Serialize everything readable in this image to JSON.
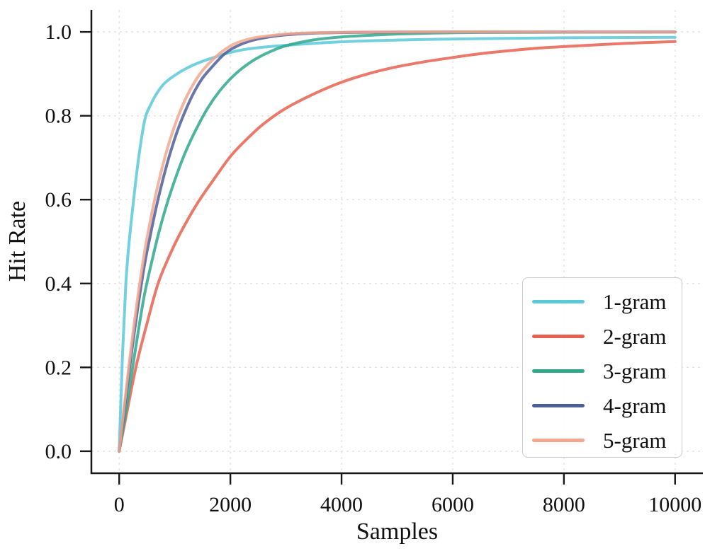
{
  "figure": {
    "background": "#ffffff",
    "text_color": "#111111",
    "grid_color": "#e2e2e2",
    "spine_color": "#181818"
  },
  "chart_data": {
    "type": "line",
    "title": "",
    "xlabel": "Samples",
    "ylabel": "Hit Rate",
    "xlim": [
      -500,
      10500
    ],
    "ylim": [
      -0.0525,
      1.0525
    ],
    "grid": true,
    "grid_style": "dashed",
    "legend_position": "lower right",
    "xticks": [
      0,
      2000,
      4000,
      6000,
      8000,
      10000
    ],
    "xtick_labels": [
      "0",
      "2000",
      "4000",
      "6000",
      "8000",
      "10000"
    ],
    "yticks": [
      0.0,
      0.2,
      0.4,
      0.6,
      0.8,
      1.0
    ],
    "ytick_labels": [
      "0.0",
      "0.2",
      "0.4",
      "0.6",
      "0.8",
      "1.0"
    ],
    "series": [
      {
        "name": "1-gram",
        "color": "#5bc8d9",
        "points": [
          [
            0,
            0
          ],
          [
            60,
            0.23
          ],
          [
            120,
            0.4
          ],
          [
            180,
            0.5
          ],
          [
            260,
            0.6
          ],
          [
            350,
            0.7
          ],
          [
            460,
            0.79
          ],
          [
            560,
            0.825
          ],
          [
            660,
            0.85
          ],
          [
            790,
            0.874
          ],
          [
            920,
            0.889
          ],
          [
            1100,
            0.905
          ],
          [
            1300,
            0.919
          ],
          [
            1500,
            0.93
          ],
          [
            1750,
            0.941
          ],
          [
            2000,
            0.951
          ],
          [
            2300,
            0.959
          ],
          [
            2700,
            0.965
          ],
          [
            3200,
            0.97
          ],
          [
            3800,
            0.975
          ],
          [
            4500,
            0.979
          ],
          [
            5500,
            0.982
          ],
          [
            6500,
            0.984
          ],
          [
            8000,
            0.986
          ],
          [
            10000,
            0.987
          ]
        ]
      },
      {
        "name": "2-gram",
        "color": "#e8614f",
        "points": [
          [
            0,
            0
          ],
          [
            120,
            0.08
          ],
          [
            300,
            0.2
          ],
          [
            500,
            0.305
          ],
          [
            700,
            0.4
          ],
          [
            900,
            0.465
          ],
          [
            1100,
            0.52
          ],
          [
            1400,
            0.59
          ],
          [
            1700,
            0.648
          ],
          [
            2000,
            0.703
          ],
          [
            2300,
            0.745
          ],
          [
            2600,
            0.781
          ],
          [
            3000,
            0.818
          ],
          [
            3500,
            0.852
          ],
          [
            4000,
            0.88
          ],
          [
            4500,
            0.901
          ],
          [
            5000,
            0.917
          ],
          [
            5500,
            0.929
          ],
          [
            6000,
            0.939
          ],
          [
            6500,
            0.948
          ],
          [
            7000,
            0.955
          ],
          [
            7500,
            0.961
          ],
          [
            8000,
            0.965
          ],
          [
            9000,
            0.972
          ],
          [
            10000,
            0.977
          ]
        ]
      },
      {
        "name": "3-gram",
        "color": "#2ea88c",
        "points": [
          [
            0,
            0
          ],
          [
            150,
            0.12
          ],
          [
            300,
            0.25
          ],
          [
            450,
            0.37
          ],
          [
            600,
            0.46
          ],
          [
            750,
            0.54
          ],
          [
            900,
            0.607
          ],
          [
            1050,
            0.665
          ],
          [
            1200,
            0.716
          ],
          [
            1400,
            0.772
          ],
          [
            1600,
            0.82
          ],
          [
            1800,
            0.858
          ],
          [
            2000,
            0.888
          ],
          [
            2200,
            0.912
          ],
          [
            2450,
            0.935
          ],
          [
            2700,
            0.952
          ],
          [
            3000,
            0.967
          ],
          [
            3500,
            0.981
          ],
          [
            4000,
            0.988
          ],
          [
            4500,
            0.992
          ],
          [
            5000,
            0.995
          ],
          [
            6000,
            0.998
          ],
          [
            7000,
            0.999
          ],
          [
            8000,
            0.9993
          ],
          [
            10000,
            0.9997
          ]
        ]
      },
      {
        "name": "4-gram",
        "color": "#4d5f99",
        "points": [
          [
            0,
            0
          ],
          [
            150,
            0.16
          ],
          [
            300,
            0.31
          ],
          [
            450,
            0.44
          ],
          [
            560,
            0.515
          ],
          [
            680,
            0.59
          ],
          [
            800,
            0.655
          ],
          [
            920,
            0.712
          ],
          [
            1050,
            0.765
          ],
          [
            1200,
            0.815
          ],
          [
            1350,
            0.857
          ],
          [
            1500,
            0.89
          ],
          [
            1700,
            0.921
          ],
          [
            1900,
            0.948
          ],
          [
            2100,
            0.965
          ],
          [
            2400,
            0.98
          ],
          [
            2700,
            0.988
          ],
          [
            3000,
            0.993
          ],
          [
            3500,
            0.997
          ],
          [
            4000,
            0.9985
          ],
          [
            5000,
            0.9995
          ],
          [
            6000,
            1.0
          ],
          [
            10000,
            1.0
          ]
        ]
      },
      {
        "name": "5-gram",
        "color": "#f3a78e",
        "points": [
          [
            0,
            0
          ],
          [
            150,
            0.175
          ],
          [
            300,
            0.335
          ],
          [
            450,
            0.47
          ],
          [
            560,
            0.55
          ],
          [
            680,
            0.625
          ],
          [
            800,
            0.69
          ],
          [
            920,
            0.745
          ],
          [
            1050,
            0.795
          ],
          [
            1200,
            0.842
          ],
          [
            1350,
            0.879
          ],
          [
            1500,
            0.908
          ],
          [
            1700,
            0.936
          ],
          [
            1900,
            0.958
          ],
          [
            2100,
            0.973
          ],
          [
            2400,
            0.985
          ],
          [
            2700,
            0.991
          ],
          [
            3000,
            0.995
          ],
          [
            3500,
            0.998
          ],
          [
            4000,
            0.9992
          ],
          [
            5000,
            1.0
          ],
          [
            10000,
            1.0
          ]
        ]
      }
    ]
  }
}
